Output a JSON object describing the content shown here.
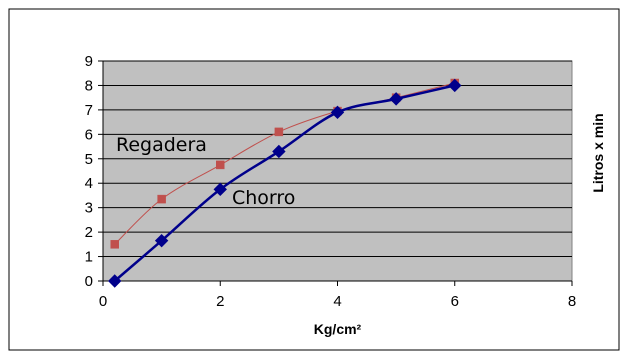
{
  "chart_data": {
    "type": "line",
    "title": "",
    "xlabel": "Kg/cm²",
    "ylabel": "Litros x min",
    "xlim": [
      0,
      8
    ],
    "ylim": [
      0,
      9
    ],
    "x_ticks": [
      0,
      2,
      4,
      6,
      8
    ],
    "y_ticks": [
      0,
      1,
      2,
      3,
      4,
      5,
      6,
      7,
      8,
      9
    ],
    "grid": "horizontal",
    "plot_background": "#c0c0c0",
    "legend": "none",
    "series": [
      {
        "name": "Regadera",
        "color": "#c0504d",
        "marker": "square",
        "x": [
          0.2,
          1,
          2,
          3,
          4,
          5,
          6
        ],
        "y": [
          1.5,
          3.35,
          4.75,
          6.1,
          6.95,
          7.5,
          8.1
        ]
      },
      {
        "name": "Chorro",
        "color": "#00008b",
        "marker": "diamond",
        "x": [
          0.2,
          1,
          2,
          3,
          4,
          5,
          6
        ],
        "y": [
          0,
          1.65,
          3.75,
          5.3,
          6.9,
          7.45,
          8.0
        ]
      }
    ],
    "annotations": [
      {
        "text": "Regadera",
        "series": "Regadera"
      },
      {
        "text": "Chorro",
        "series": "Chorro"
      }
    ]
  }
}
